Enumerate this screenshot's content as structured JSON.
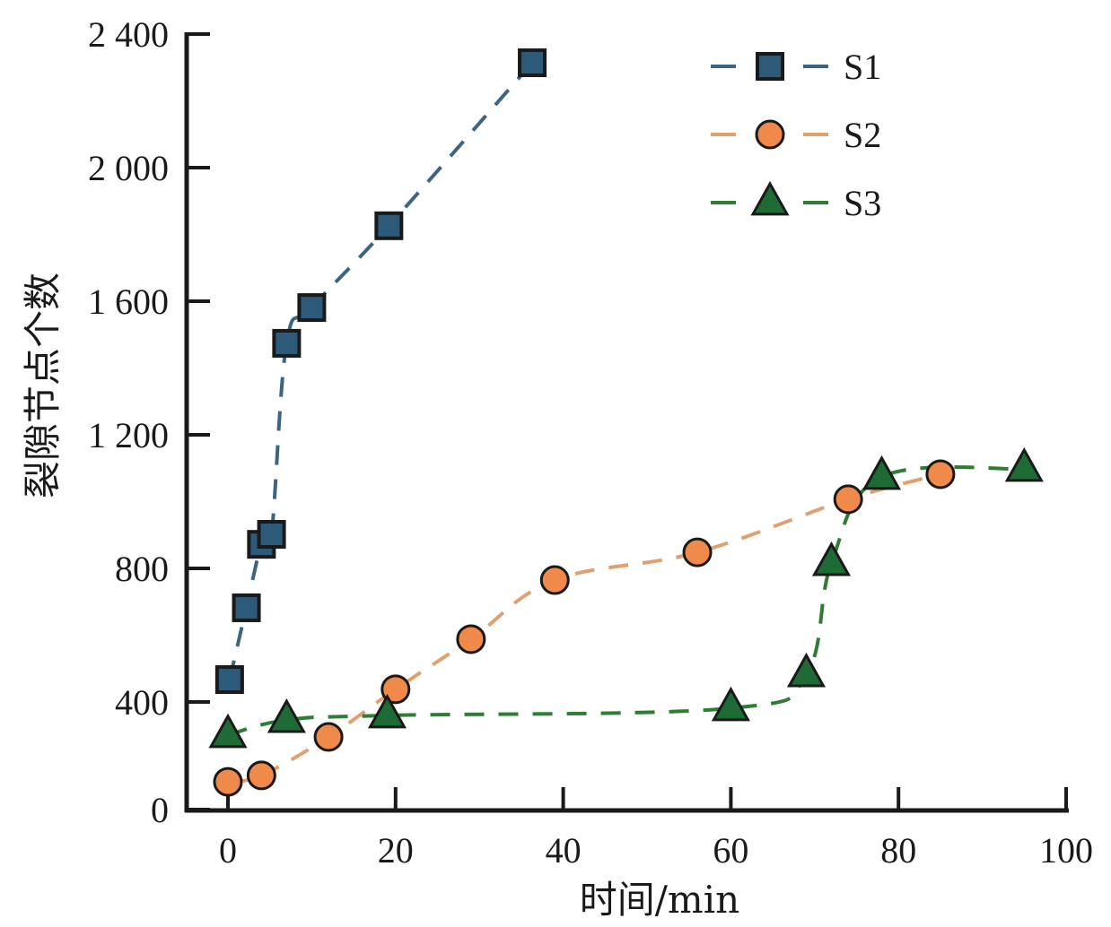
{
  "chart_data": {
    "type": "line",
    "title": "",
    "xlabel": "时间/min",
    "ylabel": "裂隙节点个数",
    "xlim": [
      -5,
      100
    ],
    "ylim": [
      0,
      2400
    ],
    "x_ticks": [
      0,
      20,
      40,
      60,
      80,
      100
    ],
    "x_tick_labels": [
      "0",
      "20",
      "40",
      "60",
      "80",
      "100"
    ],
    "y_ticks": [
      0,
      400,
      800,
      1200,
      1600,
      2000,
      2400
    ],
    "y_tick_labels": [
      "0",
      "400",
      "800",
      "1 200",
      "1 600",
      "2 000",
      "2 400"
    ],
    "grid": false,
    "legend_position": "top-right",
    "line_style": "dashed",
    "series": [
      {
        "name": "S1",
        "marker": "square",
        "color": "#2c5a78",
        "line_color": "#3d6480",
        "x": [
          0.2,
          2.2,
          4.0,
          5.2,
          7.0,
          10.0,
          19.2,
          36.3
        ],
        "y": [
          467,
          682,
          872,
          902,
          1474,
          1581,
          1826,
          2314
        ]
      },
      {
        "name": "S2",
        "marker": "circle",
        "color": "#f08a4b",
        "line_color": "#e0a070",
        "x": [
          0.0,
          4.0,
          12.0,
          20.0,
          29.0,
          39.0,
          56.0,
          74.0,
          85.0
        ],
        "y": [
          103,
          127,
          270,
          438,
          588,
          765,
          848,
          1007,
          1082
        ]
      },
      {
        "name": "S3",
        "marker": "triangle",
        "color": "#1f6b35",
        "line_color": "#2e7d32",
        "x": [
          0.0,
          7.0,
          19.0,
          60.0,
          69.0,
          72.0,
          78.0,
          95.0
        ],
        "y": [
          277,
          333,
          350,
          377,
          483,
          816,
          1074,
          1098
        ]
      }
    ]
  }
}
